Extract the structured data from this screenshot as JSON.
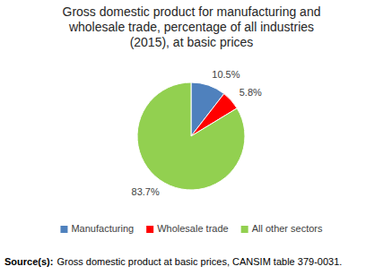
{
  "chart_data": {
    "type": "pie",
    "title": "Gross domestic product for manufacturing and wholesale trade, percentage of all industries (2015), at basic prices",
    "categories": [
      "Manufacturing",
      "Wholesale trade",
      "All other sectors"
    ],
    "values": [
      10.5,
      5.8,
      83.7
    ],
    "value_labels": [
      "10.5%",
      "5.8%",
      "83.7%"
    ],
    "colors": [
      "#4f81bd",
      "#ff0000",
      "#92d050"
    ],
    "data_labels": true,
    "legend": "bottom",
    "source_label": "Source(s):",
    "source": "Gross domestic product at basic prices, CANSIM table 379-0031."
  }
}
